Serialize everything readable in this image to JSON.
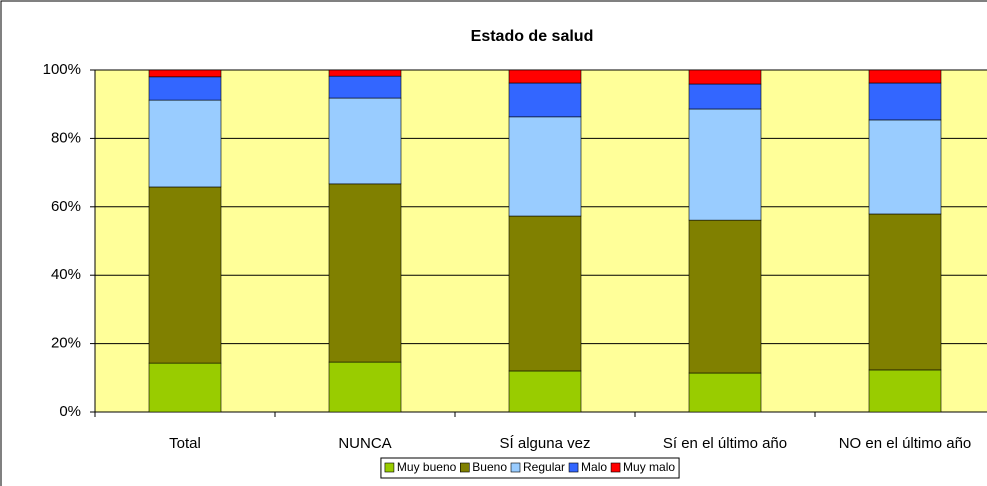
{
  "chart_data": {
    "type": "stacked_bar",
    "title": "Estado de salud",
    "categories": [
      "Total",
      "NUNCA",
      "SÍ alguna vez",
      "Sí en el último año",
      "NO en el último año"
    ],
    "series": [
      {
        "name": "Muy bueno",
        "color": "#99cc00",
        "values": [
          14.3,
          14.6,
          12.0,
          11.4,
          12.3
        ]
      },
      {
        "name": "Bueno",
        "color": "#808000",
        "values": [
          51.5,
          52.1,
          45.3,
          44.7,
          45.6
        ]
      },
      {
        "name": "Regular",
        "color": "#99ccff",
        "values": [
          25.4,
          25.1,
          29.0,
          32.5,
          27.5
        ]
      },
      {
        "name": "Malo",
        "color": "#3366ff",
        "values": [
          6.8,
          6.4,
          9.9,
          7.3,
          10.8
        ]
      },
      {
        "name": "Muy malo",
        "color": "#ff0000",
        "values": [
          2.0,
          1.8,
          3.8,
          4.1,
          3.8
        ]
      }
    ],
    "ylim": [
      0,
      100
    ],
    "yticks": [
      {
        "value": 0,
        "label": "0%"
      },
      {
        "value": 20,
        "label": "20%"
      },
      {
        "value": 40,
        "label": "40%"
      },
      {
        "value": 60,
        "label": "60%"
      },
      {
        "value": 80,
        "label": "80%"
      },
      {
        "value": 100,
        "label": "100%"
      }
    ],
    "grid": true,
    "legend": "bottom",
    "plot_background": "#ffff99"
  }
}
